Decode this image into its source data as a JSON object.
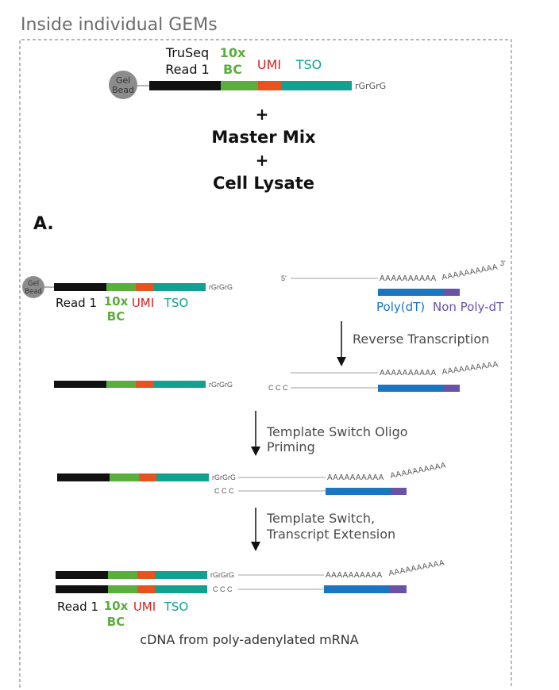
{
  "title": "Inside individual GEMs",
  "colors": {
    "black": "#111111",
    "green": "#5aae3c",
    "orange": "#e8521f",
    "teal": "#12a190",
    "blue": "#1876c3",
    "purple": "#6a52a8",
    "gray_line": "#b3b3b3",
    "bead": "#8c8c8c"
  },
  "top": {
    "bead_label_1": "Gel",
    "bead_label_2": "Bead",
    "truseq_1": "TruSeq",
    "truseq_2": "Read 1",
    "bc_1": "10x",
    "bc_2": "BC",
    "umi": "UMI",
    "tso": "TSO",
    "rg": "rGrGrG",
    "plus_1": "+",
    "master_mix": "Master Mix",
    "plus_2": "+",
    "cell_lysate": "Cell Lysate"
  },
  "section_label": "A.",
  "step1": {
    "bead_label_1": "Gel",
    "bead_label_2": "Bead",
    "rg": "rGrGrG",
    "read1": "Read 1",
    "bc_1": "10x",
    "bc_2": "BC",
    "umi": "UMI",
    "tso": "TSO",
    "five_prime": "5'",
    "three_prime": "3'",
    "polyA": "AAAAAAAAAA",
    "polyA_tail": "AAAAAAAAAA",
    "poly_dt": "Poly(dT)",
    "non_poly_dt": "Non Poly-dT"
  },
  "arrow1_label": "Reverse Transcription",
  "step2": {
    "rg": "rGrGrG",
    "ccc": "C C C",
    "polyA": "AAAAAAAAAA",
    "polyA_tail": "AAAAAAAAAA"
  },
  "arrow2_label_1": "Template Switch Oligo",
  "arrow2_label_2": "Priming",
  "step3": {
    "rg": "rGrGrG",
    "ccc": "C C C",
    "polyA": "AAAAAAAAAA",
    "polyA_tail": "AAAAAAAAAA"
  },
  "arrow3_label_1": "Template Switch,",
  "arrow3_label_2": "Transcript Extension",
  "step4": {
    "rg": "rGrGrG",
    "ccc": "C C C",
    "polyA": "AAAAAAAAAA",
    "polyA_tail": "AAAAAAAAAA",
    "read1": "Read 1",
    "bc_1": "10x",
    "bc_2": "BC",
    "umi": "UMI",
    "tso": "TSO"
  },
  "footer_label": "cDNA from poly-adenylated mRNA"
}
